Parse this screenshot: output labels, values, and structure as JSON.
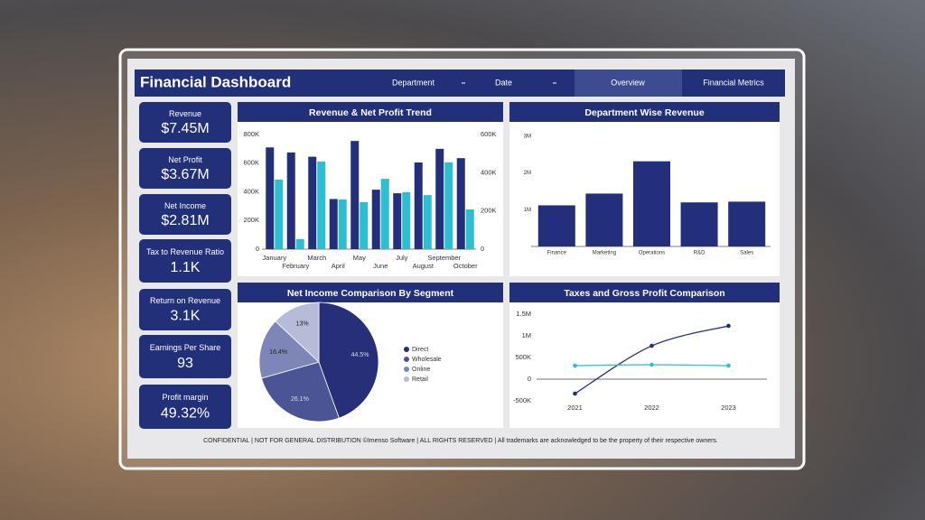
{
  "header": {
    "title": "Financial Dashboard",
    "filters": [
      "Department",
      "Date"
    ],
    "tabs": [
      "Overview",
      "Financial Metrics"
    ]
  },
  "kpis": [
    {
      "label": "Revenue",
      "value": "$7.45M"
    },
    {
      "label": "Net Profit",
      "value": "$3.67M"
    },
    {
      "label": "Net Income",
      "value": "$2.81M"
    },
    {
      "label": "Tax to Revenue Ratio",
      "value": "1.1K"
    },
    {
      "label": "Return on Revenue",
      "value": "3.1K"
    },
    {
      "label": "Earnings Per Share",
      "value": "93"
    },
    {
      "label": "Profit margin",
      "value": "49.32%"
    }
  ],
  "chart_data": [
    {
      "type": "bar",
      "title": "Revenue & Net Profit Trend",
      "categories": [
        "January",
        "February",
        "March",
        "April",
        "May",
        "June",
        "July",
        "August",
        "September",
        "October"
      ],
      "series": [
        {
          "color": "#232f7a",
          "values": [
            710000,
            675000,
            645000,
            350000,
            755000,
            415000,
            390000,
            605000,
            700000,
            635000
          ]
        },
        {
          "color": "#2bbfd1",
          "values": [
            364000,
            52000,
            458000,
            260000,
            246000,
            368000,
            298000,
            283000,
            454000,
            208000
          ],
          "axis": "y2"
        }
      ],
      "ylim": [
        0,
        800000
      ],
      "yticks": [
        0,
        {
          "value": 200000,
          "label": "200K"
        },
        {
          "value": 400000,
          "label": "400K"
        },
        {
          "value": 600000,
          "label": "600K"
        },
        {
          "value": 800000,
          "label": "800K"
        }
      ],
      "y2lim": [
        0,
        600000
      ],
      "y2ticks": [
        0,
        {
          "value": 200000,
          "label": "200K"
        },
        {
          "value": 400000,
          "label": "400K"
        },
        {
          "value": 600000,
          "label": "600K"
        }
      ]
    },
    {
      "type": "bar",
      "title": "Department Wise Revenue",
      "categories": [
        "Finance",
        "Marketing",
        "Operations",
        "R&D",
        "Sales"
      ],
      "values": [
        1120000,
        1440000,
        2320000,
        1200000,
        1220000
      ],
      "color": "#232f7a",
      "ylim": [
        0,
        3000000
      ],
      "yticks": [
        {
          "value": 1000000,
          "label": "1M"
        },
        {
          "value": 2000000,
          "label": "2M"
        },
        {
          "value": 3000000,
          "label": "3M"
        }
      ]
    },
    {
      "type": "pie",
      "title": "Net Income Comparison By Segment",
      "categories": [
        "Direct",
        "Wholesale",
        "Online",
        "Retail"
      ],
      "values": [
        44.5,
        26.1,
        16.4,
        13
      ],
      "value_labels": [
        "44.5%",
        "26.1%",
        "16.4%",
        "13%"
      ],
      "colors": [
        "#262f78",
        "#4b5596",
        "#7e86b8",
        "#b6bbd8"
      ]
    },
    {
      "type": "line",
      "title": "Taxes and Gross Profit Comparison",
      "categories": [
        "2021",
        "2022",
        "2023"
      ],
      "series": [
        {
          "color": "#232f7a",
          "values": [
            -333000,
            770000,
            1230000
          ]
        },
        {
          "color": "#2bbfd1",
          "values": [
            312000,
            333000,
            312000
          ]
        }
      ],
      "ylim": [
        -500000,
        1500000
      ],
      "yticks": [
        {
          "value": -500000,
          "label": "-500K"
        },
        0,
        {
          "value": 500000,
          "label": "500K"
        },
        {
          "value": 1000000,
          "label": "1M"
        },
        {
          "value": 1500000,
          "label": "1.5M"
        }
      ]
    }
  ],
  "footer": "CONFIDENTIAL | NOT FOR GENERAL DISTRIBUTION ©Imenso Software | ALL RIGHTS RESERVED | All trademarks are acknowledged to be the property of their respective owners."
}
